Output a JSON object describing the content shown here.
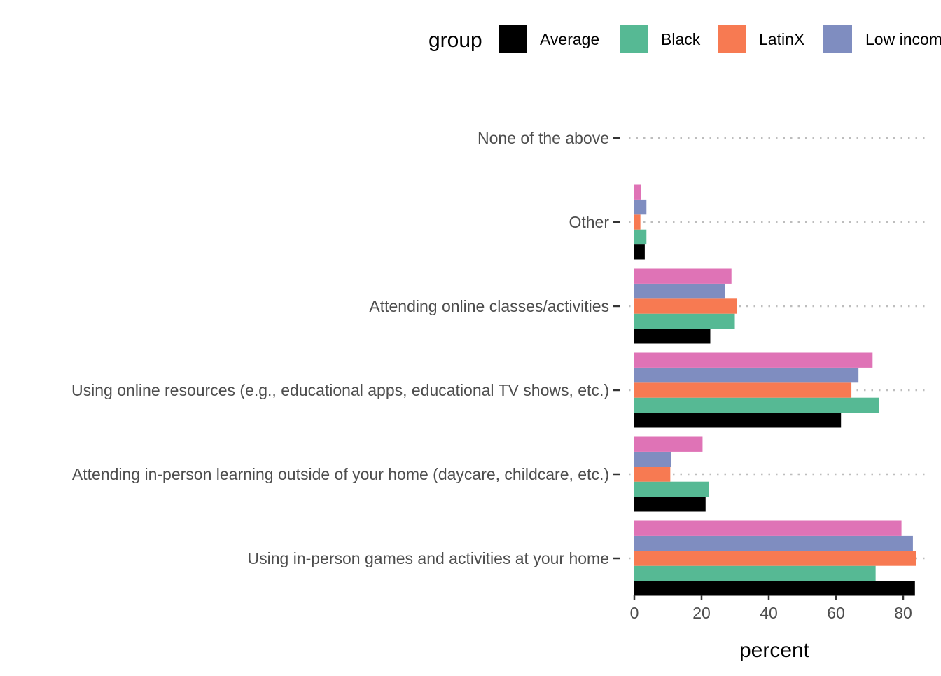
{
  "chart_data": {
    "type": "bar",
    "orientation": "horizontal",
    "categories": [
      "Using in-person games and activities at your home",
      "Attending in-person learning outside of your home (daycare, childcare, etc.)",
      "Using online resources (e.g., educational apps, educational TV shows, etc.)",
      "Attending online classes/activities",
      "Other",
      "None of the above"
    ],
    "series": [
      {
        "name": "Average",
        "color": "#000000",
        "values": [
          83.5,
          21.2,
          61.5,
          22.6,
          3.1,
          0
        ]
      },
      {
        "name": "Black",
        "color": "#56b994",
        "values": [
          71.8,
          22.2,
          72.8,
          29.9,
          3.6,
          0
        ]
      },
      {
        "name": "LatinX",
        "color": "#f77a52",
        "values": [
          83.8,
          10.7,
          64.6,
          30.6,
          1.8,
          0
        ]
      },
      {
        "name": "Low income",
        "color": "#7f8dc0",
        "values": [
          82.9,
          11.0,
          66.7,
          27.0,
          3.6,
          0
        ]
      },
      {
        "name": "",
        "color": "#df73b6",
        "values": [
          79.5,
          20.3,
          70.9,
          28.9,
          2.0,
          0
        ]
      }
    ],
    "xlabel": "percent",
    "ylabel": "",
    "xlim": [
      0,
      87
    ],
    "xticks": [
      0,
      20,
      40,
      60,
      80
    ],
    "grid": "dotted horizontal lines at categories",
    "legend": {
      "title": "group",
      "position": "top",
      "entries": [
        "Average",
        "Black",
        "LatinX",
        "Low income"
      ]
    }
  }
}
